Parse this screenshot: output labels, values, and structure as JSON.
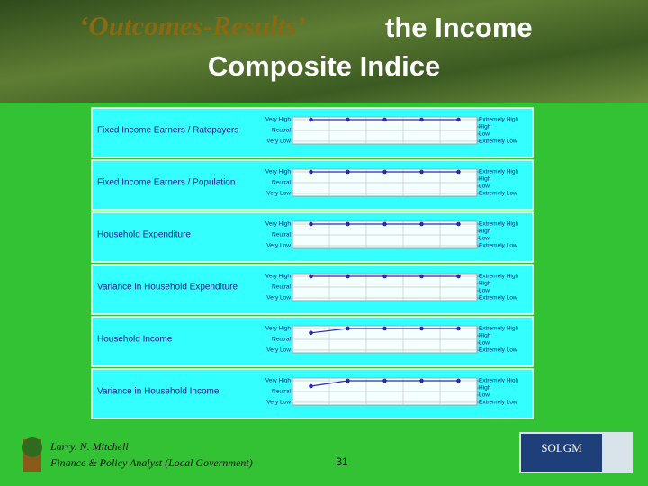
{
  "header": {
    "emphasis": "‘Outcomes-Results’",
    "title_line1": "the Income",
    "title_line2": "Composite Indice"
  },
  "chart_data": [
    {
      "type": "line",
      "title": "Fixed Income Earners / Ratepayers",
      "categories": [
        null,
        null,
        null,
        null,
        null
      ],
      "values": [
        4,
        4,
        4,
        4,
        4
      ],
      "color": "#2a2ab0",
      "grid": true,
      "ylim": [
        0,
        4
      ],
      "yticks": [
        {
          "value": 4,
          "label": "Very High"
        },
        {
          "value": 2,
          "label": "Neutral"
        },
        {
          "value": 0,
          "label": "Very Low"
        }
      ],
      "y2lim": [
        0,
        3
      ],
      "y2ticks": [
        {
          "value": 3,
          "label": "Extremely High"
        },
        {
          "value": 2,
          "label": "High"
        },
        {
          "value": 1,
          "label": "Low"
        },
        {
          "value": 0,
          "label": "Extremely Low"
        }
      ]
    },
    {
      "type": "line",
      "title": "Fixed Income Earners / Population",
      "categories": [
        null,
        null,
        null,
        null,
        null
      ],
      "values": [
        4,
        4,
        4,
        4,
        4
      ],
      "color": "#2a2ab0",
      "grid": true,
      "ylim": [
        0,
        4
      ],
      "yticks": [
        {
          "value": 4,
          "label": "Very High"
        },
        {
          "value": 2,
          "label": "Neutral"
        },
        {
          "value": 0,
          "label": "Very Low"
        }
      ],
      "y2lim": [
        0,
        3
      ],
      "y2ticks": [
        {
          "value": 3,
          "label": "Extremely High"
        },
        {
          "value": 2,
          "label": "High"
        },
        {
          "value": 1,
          "label": "Low"
        },
        {
          "value": 0,
          "label": "Extremely Low"
        }
      ]
    },
    {
      "type": "line",
      "title": "Household Expenditure",
      "categories": [
        null,
        null,
        null,
        null,
        null
      ],
      "values": [
        4,
        4,
        4,
        4,
        4
      ],
      "color": "#2a2ab0",
      "grid": true,
      "ylim": [
        0,
        4
      ],
      "yticks": [
        {
          "value": 4,
          "label": "Very High"
        },
        {
          "value": 2,
          "label": "Neutral"
        },
        {
          "value": 0,
          "label": "Very Low"
        }
      ],
      "y2lim": [
        0,
        3
      ],
      "y2ticks": [
        {
          "value": 3,
          "label": "Extremely High"
        },
        {
          "value": 2,
          "label": "High"
        },
        {
          "value": 1,
          "label": "Low"
        },
        {
          "value": 0,
          "label": "Extremely Low"
        }
      ]
    },
    {
      "type": "line",
      "title": "Variance in Household Expenditure",
      "categories": [
        null,
        null,
        null,
        null,
        null
      ],
      "values": [
        4,
        4,
        4,
        4,
        4
      ],
      "color": "#2a2ab0",
      "grid": true,
      "ylim": [
        0,
        4
      ],
      "yticks": [
        {
          "value": 4,
          "label": "Very High"
        },
        {
          "value": 2,
          "label": "Neutral"
        },
        {
          "value": 0,
          "label": "Very Low"
        }
      ],
      "y2lim": [
        0,
        3
      ],
      "y2ticks": [
        {
          "value": 3,
          "label": "Extremely High"
        },
        {
          "value": 2,
          "label": "High"
        },
        {
          "value": 1,
          "label": "Low"
        },
        {
          "value": 0,
          "label": "Extremely Low"
        }
      ]
    },
    {
      "type": "line",
      "title": "Household Income",
      "categories": [
        null,
        null,
        null,
        null,
        null
      ],
      "values": [
        3.2,
        4,
        4,
        4,
        4
      ],
      "color": "#2a2ab0",
      "grid": true,
      "ylim": [
        0,
        4
      ],
      "yticks": [
        {
          "value": 4,
          "label": "Very High"
        },
        {
          "value": 2,
          "label": "Neutral"
        },
        {
          "value": 0,
          "label": "Very Low"
        }
      ],
      "y2lim": [
        0,
        3
      ],
      "y2ticks": [
        {
          "value": 3,
          "label": "Extremely High"
        },
        {
          "value": 2,
          "label": "High"
        },
        {
          "value": 1,
          "label": "Low"
        },
        {
          "value": 0,
          "label": "Extremely Low"
        }
      ]
    },
    {
      "type": "line",
      "title": "Variance in Household Income",
      "categories": [
        null,
        null,
        null,
        null,
        null
      ],
      "values": [
        3,
        4,
        4,
        4,
        4
      ],
      "color": "#2a2ab0",
      "grid": true,
      "ylim": [
        0,
        4
      ],
      "yticks": [
        {
          "value": 4,
          "label": "Very High"
        },
        {
          "value": 2,
          "label": "Neutral"
        },
        {
          "value": 0,
          "label": "Very Low"
        }
      ],
      "y2lim": [
        0,
        3
      ],
      "y2ticks": [
        {
          "value": 3,
          "label": "Extremely High"
        },
        {
          "value": 2,
          "label": "High"
        },
        {
          "value": 1,
          "label": "Low"
        },
        {
          "value": 0,
          "label": "Extremely Low"
        }
      ]
    }
  ],
  "footer": {
    "author": "Larry. N. Mitchell",
    "role": "Finance & Policy Analyst (Local Government)",
    "page": "31",
    "logo": "SOLGM"
  }
}
